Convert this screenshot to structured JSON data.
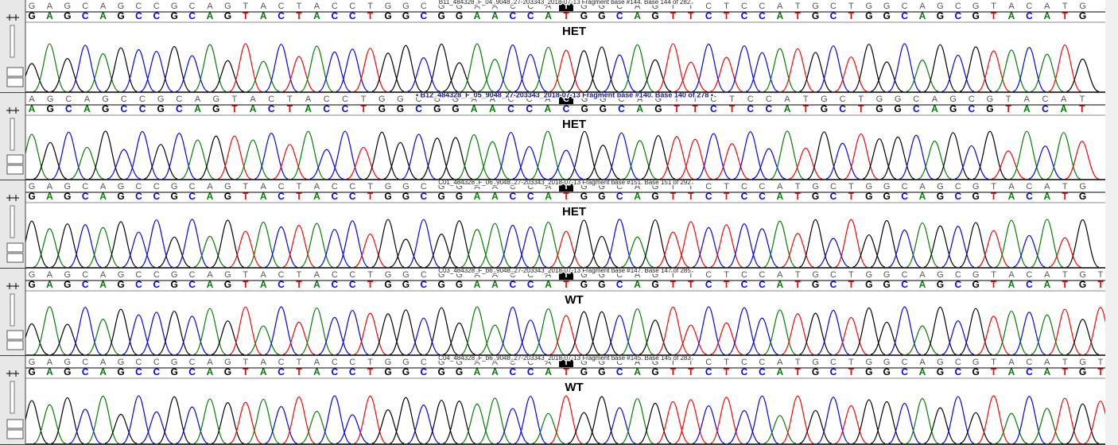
{
  "panels": [
    {
      "title": "B11_484328_F_04_9048_27-203343_2018-07-13 Fragment base #144. Base 144 of 282",
      "before": "GAGCAGCCGCAGTACTACCTGGCGGAACCA",
      "cursor": "T",
      "after": "GGCAGTTCTCCATGCTGGCAGCGTACATG",
      "called": "GAGCAGCCGCAGTACTACCTGGCGGAACCATGGCAGTTCTCCATGCTGGCAGCGTACATG",
      "label": "HET"
    },
    {
      "title": "• B12_484328_F_05_9048_27-203343_2018-07-13 Fragment base #140. Base 140 of 278 •",
      "before": "AGCAGCCGCAGTACTACCTGGCGGAACCA",
      "cursor": "C",
      "after": "GGCAGTTCTCCATGCTGGCAGCGTACAT",
      "called": "AGCAGCCGCAGTACTACCTGGCGGAACCACGGCAGTTCTCCATGCTGGCAGCGTACAT",
      "label": "HET"
    },
    {
      "title": "C01_484328_F_06_9048_27-203343_2018-07-13 Fragment base #151. Base 151 of 292",
      "before": "GAGCAGCCGCAGTACTACCTGGCGGAACCA",
      "cursor": "T",
      "after": "GGCAGTTCTCCATGCTGGCAGCGTACATG",
      "called": "GAGCAGCCGCAGTACTACCTGGCGGAACCATGGCAGTTCTCCATGCTGGCAGCGTACATG",
      "label": "HET"
    },
    {
      "title": "C03_484328_F_b6_9048_27-203343_2018-07-13 Fragment base #147. Base 147 of 285",
      "before": "GAGCAGCCGCAGTACTACCTGGCGGAACCA",
      "cursor": "T",
      "after": "GGCAGTTCTCCATGCTGGCAGCGTACATGT",
      "called": "GAGCAGCCGCAGTACTACCTGGCGGAACCATGGCAGTTCTCCATGCTGGCAGCGTACATGT",
      "label": "WT"
    },
    {
      "title": "C04_484328_F_b6_9048_27-203343_2018-07-13 Fragment base #145. Base 145 of 283",
      "before": "GAGCAGCCGCAGTACTACCTGGCGGAACCA",
      "cursor": "T",
      "after": "GGCAGTTCTCCATGCTGGCAGCGTACATGT",
      "called": "GAGCAGCCGCAGTACTACCTGGCGGAACCATGGCAGTTCTCCATGCTGGCAGCGTACATGT",
      "label": "WT"
    }
  ]
}
